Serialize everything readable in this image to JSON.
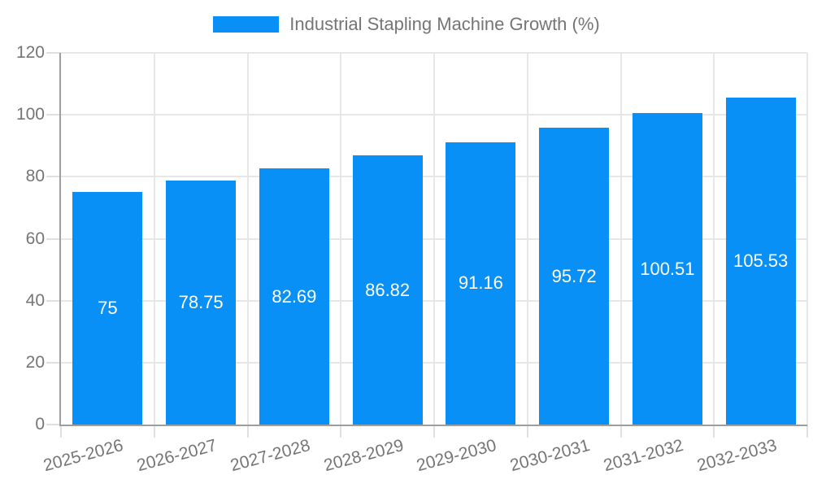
{
  "chart_data": {
    "type": "bar",
    "title": "",
    "legend": "Industrial Stapling Machine Growth (%)",
    "legend_position": "top-center",
    "categories": [
      "2025-2026",
      "2026-2027",
      "2027-2028",
      "2028-2029",
      "2029-2030",
      "2030-2031",
      "2031-2032",
      "2032-2033"
    ],
    "values": [
      75,
      78.75,
      82.69,
      86.82,
      91.16,
      95.72,
      100.51,
      105.53
    ],
    "value_labels": [
      "75",
      "78.75",
      "82.69",
      "86.82",
      "91.16",
      "95.72",
      "100.51",
      "105.53"
    ],
    "xlabel": "",
    "ylabel": "",
    "ylim": [
      0,
      120
    ],
    "yticks": [
      0,
      20,
      40,
      60,
      80,
      100,
      120
    ],
    "grid": true,
    "colors": {
      "bar": "#0890F7",
      "axis": "#9E9E9E",
      "grid": "#E7E7E7",
      "tick": "#E0E0E0",
      "text": "#757575",
      "bar_label": "#FFFFFF",
      "background": "#FFFFFF"
    }
  }
}
